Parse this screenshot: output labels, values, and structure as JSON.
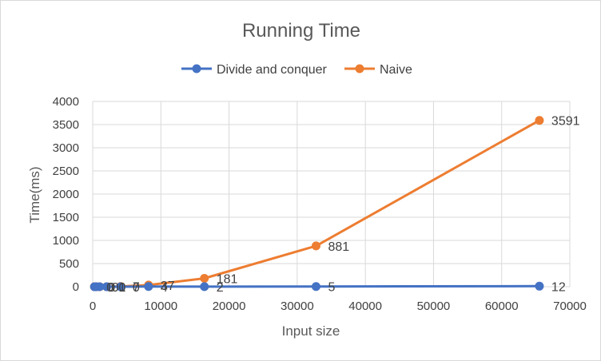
{
  "chart_data": {
    "type": "line",
    "title": "Running Time",
    "xlabel": "Input size",
    "ylabel": "Time(ms)",
    "xlim": [
      0,
      70000
    ],
    "ylim": [
      0,
      4000
    ],
    "x_ticks": [
      0,
      10000,
      20000,
      30000,
      40000,
      50000,
      60000,
      70000
    ],
    "y_ticks": [
      0,
      500,
      1000,
      1500,
      2000,
      2500,
      3000,
      3500,
      4000
    ],
    "grid": true,
    "legend_position": "top",
    "x": [
      256,
      512,
      1024,
      2048,
      4096,
      8192,
      16384,
      32768,
      65536
    ],
    "series": [
      {
        "name": "Divide and conquer",
        "color": "#4472C4",
        "values": [
          0,
          0,
          0,
          0,
          0,
          4,
          2,
          5,
          12
        ],
        "labels": [
          "0",
          "0",
          "0",
          "0",
          "0",
          "4",
          "2",
          "5",
          "12"
        ]
      },
      {
        "name": "Naive",
        "color": "#ED7D31",
        "values": [
          0,
          0,
          0,
          1,
          7,
          37,
          181,
          881,
          3591
        ],
        "labels": [
          "",
          "",
          "",
          "1",
          "7",
          "37",
          "181",
          "881",
          "3591"
        ]
      }
    ]
  }
}
